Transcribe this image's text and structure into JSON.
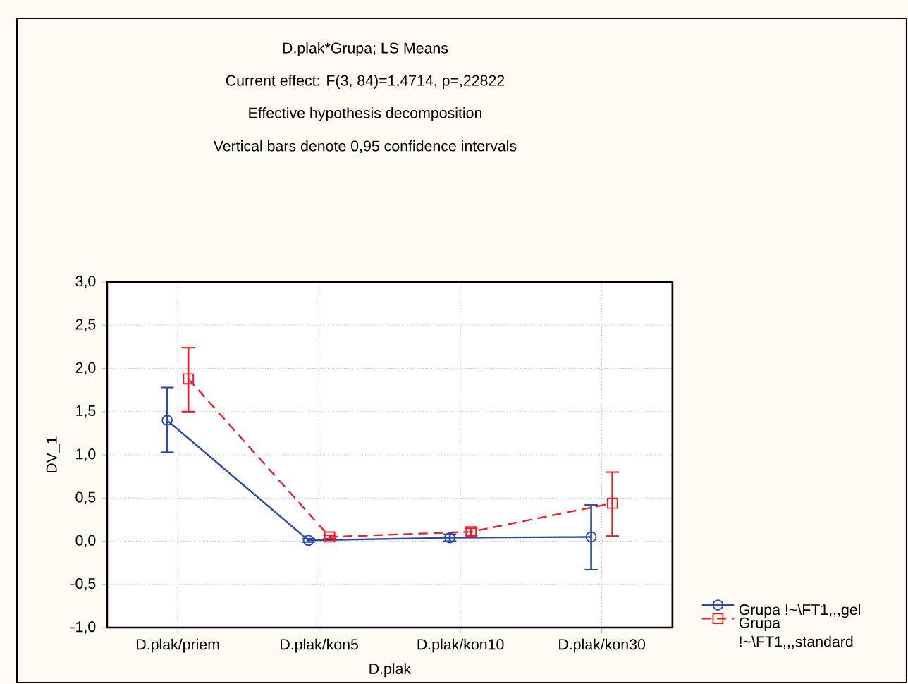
{
  "chart_data": {
    "type": "line",
    "title": "D.plak*Grupa; LS Means",
    "subtitle": "Current effect: F(3, 84)=1,4714, p=,22822",
    "annotations": [
      "Effective hypothesis decomposition",
      "Vertical bars denote 0,95 confidence intervals"
    ],
    "xlabel": "D.plak",
    "ylabel": "DV_1",
    "categories": [
      "D.plak/priem",
      "D.plak/kon5",
      "D.plak/kon10",
      "D.plak/kon30"
    ],
    "ylim": [
      -1,
      3
    ],
    "yticks": [
      {
        "value": -1,
        "label": "-1,0"
      },
      {
        "value": -0.5,
        "label": "-0,5"
      },
      {
        "value": 0,
        "label": "0,0"
      },
      {
        "value": 0.5,
        "label": "0,5"
      },
      {
        "value": 1,
        "label": "1,0"
      },
      {
        "value": 1.5,
        "label": "1,5"
      },
      {
        "value": 2,
        "label": "2,0"
      },
      {
        "value": 2.5,
        "label": "2,5"
      },
      {
        "value": 3,
        "label": "3,0"
      }
    ],
    "grid": true,
    "legend": "bottom right",
    "series": [
      {
        "name": "Grupa !~\\FT1,,,gel",
        "color": "#2b4ba8",
        "marker": "circle",
        "line_style": "solid",
        "values": [
          1.4,
          0.01,
          0.04,
          0.05
        ],
        "errors": [
          [
            1.03,
            1.78
          ],
          [
            -0.01,
            0.03
          ],
          [
            0.0,
            0.08
          ],
          [
            -0.33,
            0.42
          ]
        ]
      },
      {
        "name": "Grupa !~\\FT1,,,standard",
        "color": "#e8202a",
        "marker": "square",
        "line_style": "dashed",
        "values": [
          1.88,
          0.05,
          0.11,
          0.44
        ],
        "errors": [
          [
            1.5,
            2.24
          ],
          [
            0.03,
            0.07
          ],
          [
            0.07,
            0.15
          ],
          [
            0.06,
            0.8
          ]
        ]
      }
    ]
  }
}
